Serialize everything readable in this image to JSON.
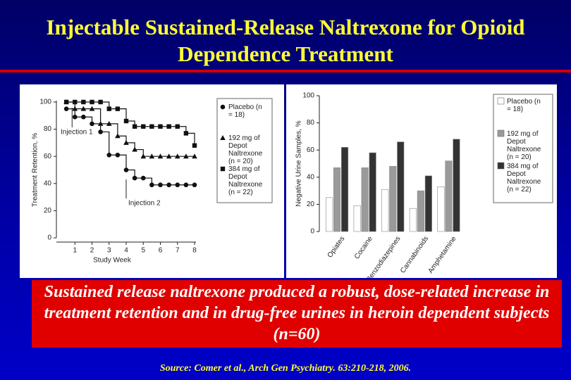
{
  "title": "Injectable Sustained-Release Naltrexone for Opioid Dependence Treatment",
  "chart_data": [
    {
      "type": "line",
      "x": [
        0.5,
        1,
        1.5,
        2,
        2.5,
        3,
        3.5,
        4,
        4.5,
        5,
        5.5,
        6,
        6.5,
        7,
        7.5,
        8
      ],
      "xlim": [
        0,
        8
      ],
      "xticks": [
        1,
        2,
        3,
        4,
        5,
        6,
        7,
        8
      ],
      "ylim": [
        0,
        100
      ],
      "yticks": [
        0,
        20,
        40,
        60,
        80,
        100
      ],
      "xlabel": "Study Week",
      "ylabel": "Treatment Retention, %",
      "annotations": [
        "Injection 1",
        "Injection 2"
      ],
      "series": [
        {
          "name": "Placebo (n = 18)",
          "color": "#111111",
          "marker": "circle",
          "values": [
            95,
            89,
            89,
            84,
            78,
            61,
            61,
            50,
            44,
            44,
            39,
            39,
            39,
            39,
            39,
            39
          ]
        },
        {
          "name": "192 mg of Depot Naltrexone (n = 20)",
          "color": "#111111",
          "marker": "triangle",
          "values": [
            100,
            95,
            95,
            95,
            84,
            84,
            75,
            70,
            65,
            60,
            60,
            60,
            60,
            60,
            60,
            60
          ]
        },
        {
          "name": "384 mg of Depot Naltrexone (n = 22)",
          "color": "#111111",
          "marker": "square",
          "values": [
            100,
            100,
            100,
            100,
            100,
            95,
            95,
            86,
            82,
            82,
            82,
            82,
            82,
            82,
            77,
            68
          ]
        }
      ]
    },
    {
      "type": "bar",
      "categories": [
        "Opiates",
        "Cocaine",
        "Benzodiazepines",
        "Cannabinoids",
        "Amphetamine"
      ],
      "ylim": [
        0,
        100
      ],
      "yticks": [
        0,
        20,
        40,
        60,
        80,
        100
      ],
      "ylabel": "Negative Urine Samples, %",
      "series": [
        {
          "name": "Placebo (n = 18)",
          "color": "#ffffff",
          "values": [
            25,
            19,
            31,
            17,
            33
          ]
        },
        {
          "name": "192 mg of Depot Naltrexone (n = 20)",
          "color": "#9a9a9a",
          "values": [
            47,
            47,
            48,
            30,
            52
          ]
        },
        {
          "name": "384 mg of Depot Naltrexone (n = 22)",
          "color": "#333333",
          "values": [
            62,
            58,
            66,
            41,
            68
          ]
        }
      ]
    }
  ],
  "caption": "Sustained release naltrexone produced a robust, dose-related increase in treatment retention and in drug-free urines in heroin dependent subjects (n=60)",
  "source": "Source: Comer et al., Arch Gen Psychiatry. 63:210-218, 2006."
}
